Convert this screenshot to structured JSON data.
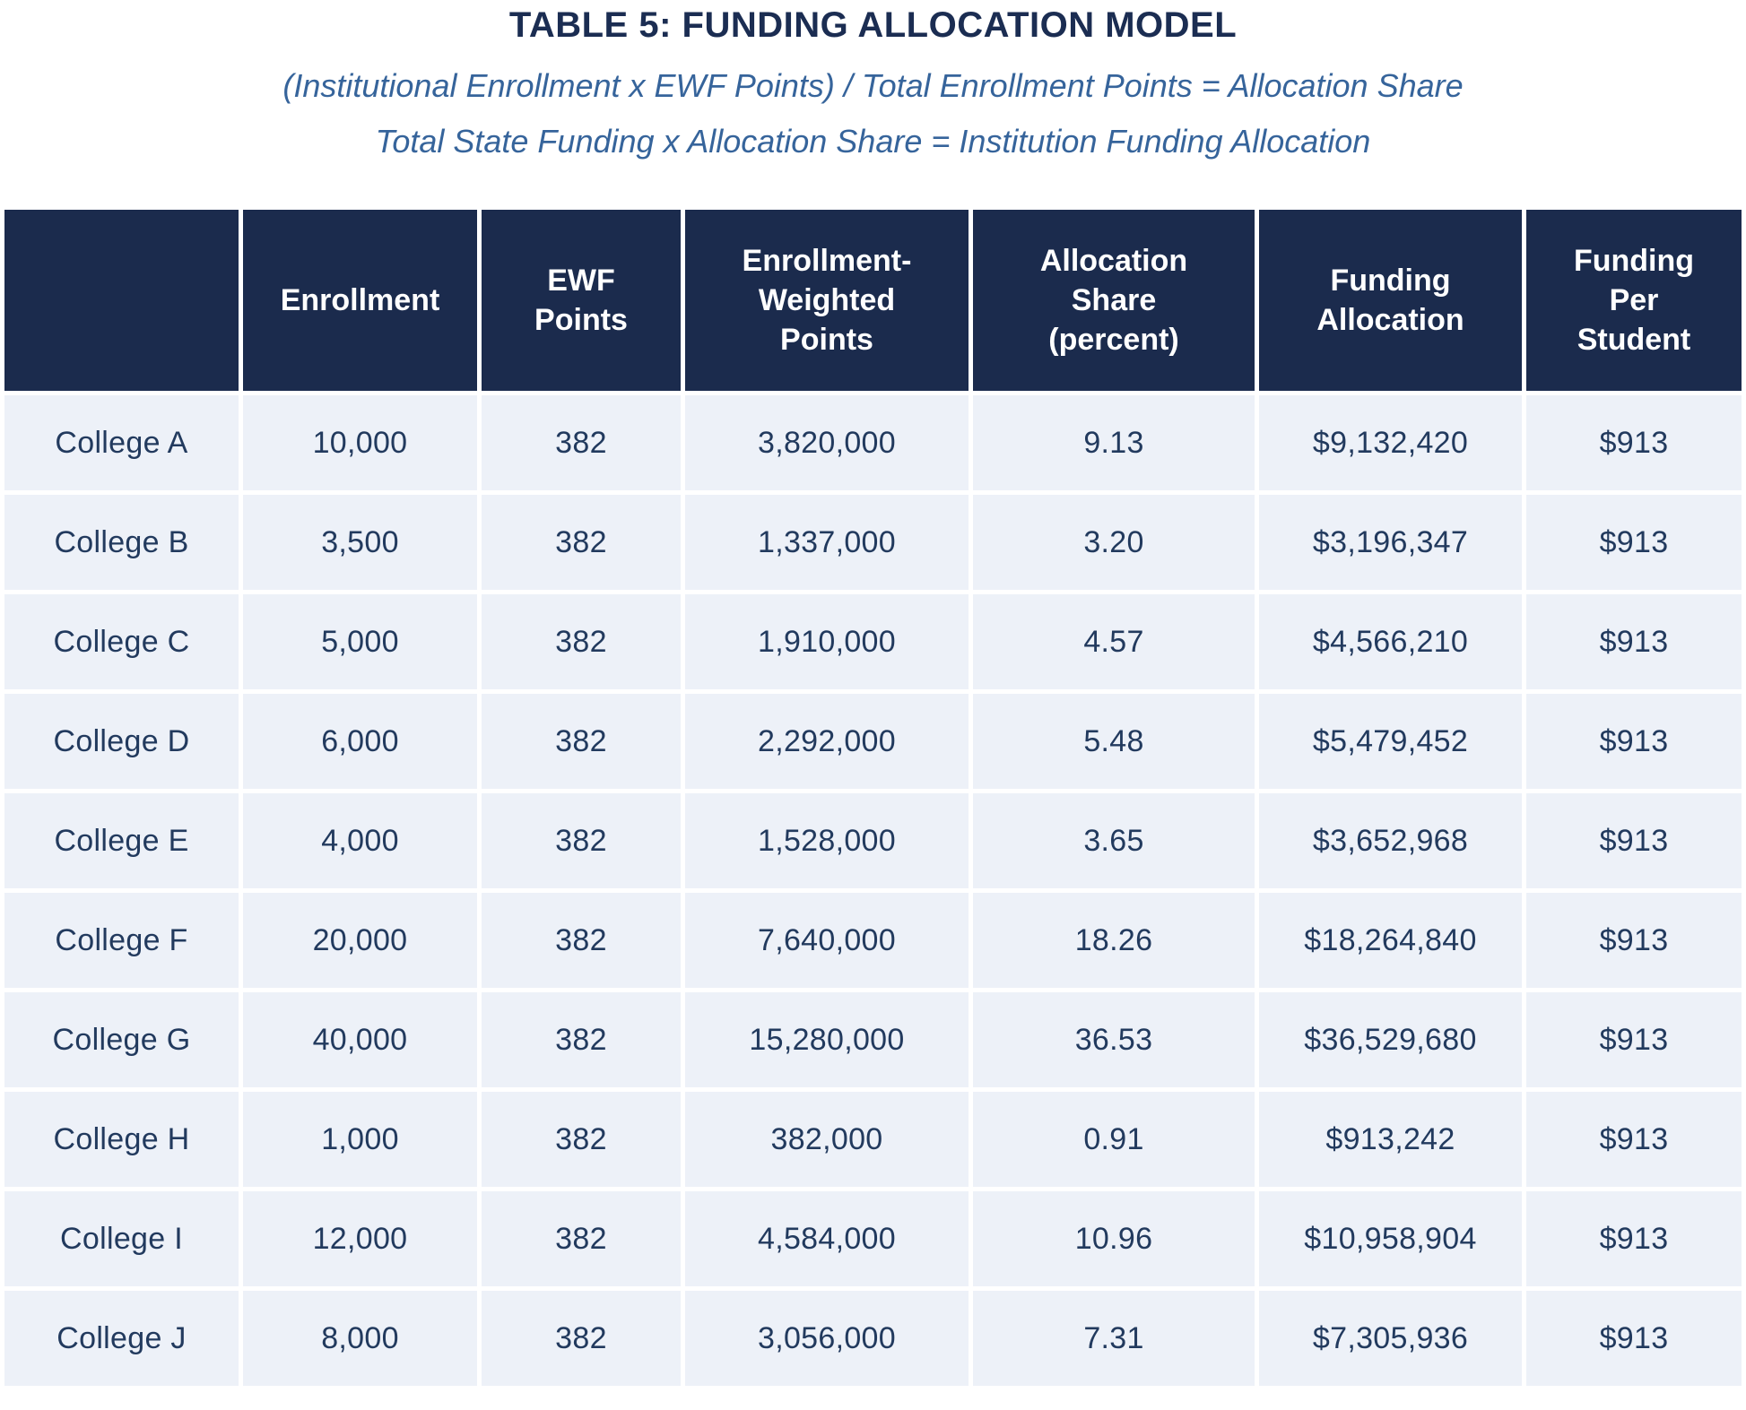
{
  "title": "TABLE 5: FUNDING ALLOCATION MODEL",
  "formulas": {
    "line1": "(Institutional Enrollment x EWF Points) / Total Enrollment Points = Allocation Share",
    "line2": "Total State Funding x Allocation Share = Institution Funding Allocation"
  },
  "colors": {
    "header_bg": "#1b2b4d",
    "header_text": "#ffffff",
    "row_bg": "#edf1f8",
    "cell_text": "#223a5e",
    "title_text": "#1b2d52",
    "formula_text": "#36649b"
  },
  "table": {
    "headers": [
      "",
      "Enrollment",
      "EWF\nPoints",
      "Enrollment-\nWeighted\nPoints",
      "Allocation\nShare\n(percent)",
      "Funding\nAllocation",
      "Funding\nPer\nStudent"
    ],
    "rows": [
      [
        "College A",
        "10,000",
        "382",
        "3,820,000",
        "9.13",
        "$9,132,420",
        "$913"
      ],
      [
        "College B",
        "3,500",
        "382",
        "1,337,000",
        "3.20",
        "$3,196,347",
        "$913"
      ],
      [
        "College C",
        "5,000",
        "382",
        "1,910,000",
        "4.57",
        "$4,566,210",
        "$913"
      ],
      [
        "College D",
        "6,000",
        "382",
        "2,292,000",
        "5.48",
        "$5,479,452",
        "$913"
      ],
      [
        "College E",
        "4,000",
        "382",
        "1,528,000",
        "3.65",
        "$3,652,968",
        "$913"
      ],
      [
        "College F",
        "20,000",
        "382",
        "7,640,000",
        "18.26",
        "$18,264,840",
        "$913"
      ],
      [
        "College G",
        "40,000",
        "382",
        "15,280,000",
        "36.53",
        "$36,529,680",
        "$913"
      ],
      [
        "College H",
        "1,000",
        "382",
        "382,000",
        "0.91",
        "$913,242",
        "$913"
      ],
      [
        "College I",
        "12,000",
        "382",
        "4,584,000",
        "10.96",
        "$10,958,904",
        "$913"
      ],
      [
        "College J",
        "8,000",
        "382",
        "3,056,000",
        "7.31",
        "$7,305,936",
        "$913"
      ]
    ]
  }
}
